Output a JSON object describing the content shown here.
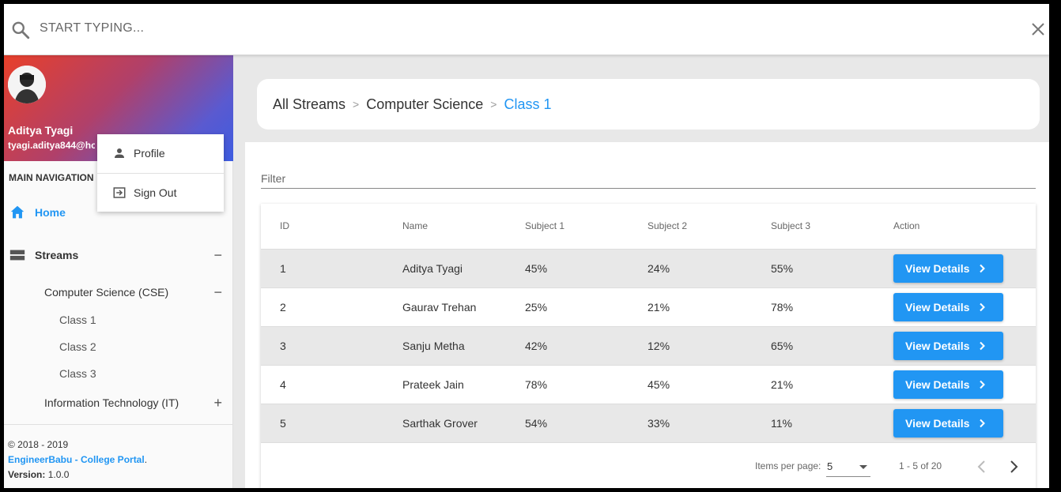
{
  "search": {
    "placeholder": "START TYPING..."
  },
  "sidebar": {
    "user": {
      "name": "Aditya Tyagi",
      "email": "tyagi.aditya844@hotmail.com"
    },
    "nav_header": "MAIN NAVIGATION",
    "home_label": "Home",
    "streams_label": "Streams",
    "streams_toggle": "−",
    "cse_label": "Computer Science (CSE)",
    "cse_toggle": "−",
    "classes": [
      "Class 1",
      "Class 2",
      "Class 3"
    ],
    "it_label": "Information Technology (IT)",
    "it_toggle": "+",
    "footer": {
      "copyright": "© 2018 - 2019",
      "portal": "EngineerBabu - College Portal",
      "portal_suffix": ".",
      "version_label": "Version:",
      "version": "1.0.0"
    }
  },
  "profile_menu": {
    "profile": "Profile",
    "sign_out": "Sign Out"
  },
  "breadcrumb": {
    "items": [
      "All Streams",
      "Computer Science",
      "Class 1"
    ],
    "separator": ">"
  },
  "filter": {
    "label": "Filter"
  },
  "table": {
    "headers": [
      "ID",
      "Name",
      "Subject 1",
      "Subject 2",
      "Subject 3",
      "Action"
    ],
    "rows": [
      {
        "id": "1",
        "name": "Aditya Tyagi",
        "s1": "45%",
        "s2": "24%",
        "s3": "55%"
      },
      {
        "id": "2",
        "name": "Gaurav Trehan",
        "s1": "25%",
        "s2": "21%",
        "s3": "78%"
      },
      {
        "id": "3",
        "name": "Sanju Metha",
        "s1": "42%",
        "s2": "12%",
        "s3": "65%"
      },
      {
        "id": "4",
        "name": "Prateek Jain",
        "s1": "78%",
        "s2": "45%",
        "s3": "21%"
      },
      {
        "id": "5",
        "name": "Sarthak Grover",
        "s1": "54%",
        "s2": "33%",
        "s3": "11%"
      }
    ],
    "action_label": "View Details"
  },
  "paginator": {
    "items_per_page_label": "Items per page:",
    "page_size": "5",
    "range": "1 - 5 of 20"
  },
  "colors": {
    "accent": "#2196f3",
    "sidebar_gradient_start": "#e8402a",
    "sidebar_gradient_end": "#3d5ce0"
  }
}
